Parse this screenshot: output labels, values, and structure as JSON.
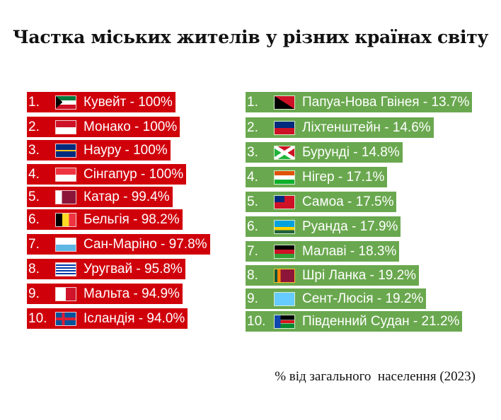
{
  "title": "Частка міських жителів у різних країнах світу",
  "footnote": "% від загального  населення (2023)",
  "colors": {
    "highest": "#d0000b",
    "lowest": "#6aa84f"
  },
  "highest": [
    {
      "rank": "1.",
      "country": "Кувейт",
      "value": "100%",
      "flag": "kw"
    },
    {
      "rank": "2.",
      "country": "Монако",
      "value": "100%",
      "flag": "mc"
    },
    {
      "rank": "3.",
      "country": "Науру",
      "value": "100%",
      "flag": "nr"
    },
    {
      "rank": "4.",
      "country": "Сінгапур",
      "value": "100%",
      "flag": "sg"
    },
    {
      "rank": "5.",
      "country": "Катар",
      "value": "99.4%",
      "flag": "qa"
    },
    {
      "rank": "6.",
      "country": "Бельгія",
      "value": "98.2%",
      "flag": "be"
    },
    {
      "rank": "7.",
      "country": "Сан-Маріно",
      "value": "97.8%",
      "flag": "sm"
    },
    {
      "rank": "8.",
      "country": "Уругвай",
      "value": "95.8%",
      "flag": "uy"
    },
    {
      "rank": "9.",
      "country": "Мальта",
      "value": "94.9%",
      "flag": "mt"
    },
    {
      "rank": "10.",
      "country": "Ісландія",
      "value": "94.0%",
      "flag": "is"
    }
  ],
  "lowest": [
    {
      "rank": "1.",
      "country": "Папуа-Нова Гвінея",
      "value": "13.7%",
      "flag": "pg"
    },
    {
      "rank": "2.",
      "country": "Ліхтенштейн",
      "value": "14.6%",
      "flag": "li"
    },
    {
      "rank": "3.",
      "country": "Бурунді",
      "value": "14.8%",
      "flag": "bi"
    },
    {
      "rank": "4.",
      "country": "Нігер",
      "value": "17.1%",
      "flag": "ne"
    },
    {
      "rank": "5.",
      "country": "Самоа",
      "value": "17.5%",
      "flag": "ws"
    },
    {
      "rank": "6.",
      "country": "Руанда",
      "value": "17.9%",
      "flag": "rw"
    },
    {
      "rank": "7.",
      "country": "Малаві",
      "value": "18.3%",
      "flag": "mw"
    },
    {
      "rank": "8.",
      "country": "Шрі Ланка",
      "value": "19.2%",
      "flag": "lk"
    },
    {
      "rank": "9.",
      "country": "Сент-Люсія",
      "value": "19.2%",
      "flag": "lc"
    },
    {
      "rank": "10.",
      "country": "Південний Судан",
      "value": "21.2%",
      "flag": "ss"
    }
  ]
}
